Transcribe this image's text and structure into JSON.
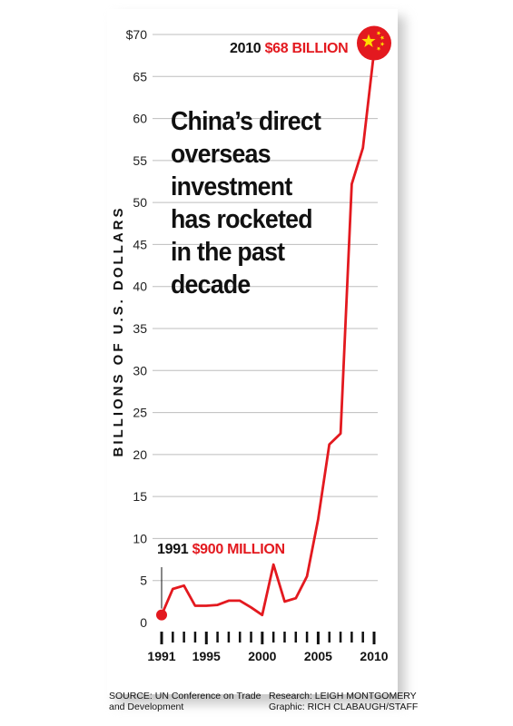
{
  "chart_data": {
    "type": "line",
    "title": "China's direct overseas investment has rocketed in the past decade",
    "title_lines": [
      "China’s direct",
      "overseas",
      "investment",
      "has rocketed",
      "in the past",
      "decade"
    ],
    "ylabel": "BILLIONS OF U.S. DOLLARS",
    "xlabel": "",
    "ylim": [
      0,
      70
    ],
    "xlim": [
      1991,
      2010
    ],
    "y_ticks": [
      0,
      5,
      10,
      15,
      20,
      25,
      30,
      35,
      40,
      45,
      50,
      55,
      60,
      65,
      70
    ],
    "y_tick_labels": [
      "0",
      "5",
      "10",
      "15",
      "20",
      "25",
      "30",
      "35",
      "40",
      "45",
      "50",
      "55",
      "60",
      "65",
      "$70"
    ],
    "x_tick_labels": [
      "1991",
      "1995",
      "2000",
      "2005",
      "2010"
    ],
    "x_tick_values": [
      1991,
      1995,
      2000,
      2005,
      2010
    ],
    "grid": true,
    "line_color": "#e3191f",
    "series": [
      {
        "x": [
          1991,
          1992,
          1993,
          1994,
          1995,
          1996,
          1997,
          1998,
          1999,
          2000,
          2001,
          2002,
          2003,
          2004,
          2005,
          2006,
          2007,
          2008,
          2009,
          2010
        ],
        "values": [
          0.9,
          4.0,
          4.4,
          2.0,
          2.0,
          2.1,
          2.6,
          2.6,
          1.8,
          0.9,
          6.9,
          2.5,
          2.9,
          5.5,
          12.3,
          21.2,
          22.5,
          52.2,
          56.5,
          68.0
        ]
      }
    ],
    "annotations": [
      {
        "year": "2010",
        "value": "$68 BILLION"
      },
      {
        "year": "1991",
        "value": "$900 MILLION"
      }
    ]
  },
  "footer": {
    "source_line1": "SOURCE: UN Conference on Trade",
    "source_line2": "and Development",
    "research": "Research: LEIGH MONTGOMERY",
    "graphic": "Graphic: RICH CLABAUGH/STAFF"
  },
  "colors": {
    "accent": "#e3191f",
    "flag_star": "#ffde00",
    "grid": "#bdbdbd"
  }
}
